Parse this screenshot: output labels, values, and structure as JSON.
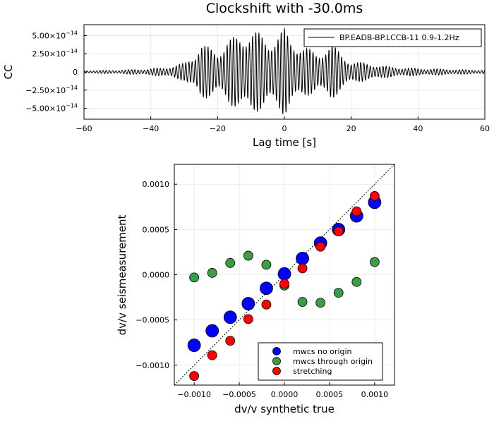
{
  "chart_data": [
    {
      "type": "line",
      "title": "Clockshift with -30.0ms",
      "xlabel": "Lag time [s]",
      "ylabel": "CC",
      "xlim": [
        -60,
        60
      ],
      "ylim": [
        -6.5e-14,
        6.5e-14
      ],
      "xticks": [
        -60,
        -40,
        -20,
        0,
        20,
        40,
        60
      ],
      "xtick_labels": [
        "−60",
        "−40",
        "−20",
        "0",
        "20",
        "40",
        "60"
      ],
      "yticks": [
        5e-14,
        2.5e-14,
        0,
        -2.5e-14,
        -5e-14
      ],
      "ytick_labels": [
        {
          "mant": "5.00×10",
          "exp": "−14"
        },
        {
          "mant": "2.50×10",
          "exp": "−14"
        },
        {
          "mant": "0",
          "exp": ""
        },
        {
          "mant": "−2.50×10",
          "exp": "−14"
        },
        {
          "mant": "−5.00×10",
          "exp": "−14"
        }
      ],
      "grid": true,
      "legend_position": "top-right",
      "series": [
        {
          "name": "BP.EADB-BP.LCCB-11 0.9-1.2Hz",
          "color": "#000000",
          "envelope": [
            [
              -60,
              2e-15
            ],
            [
              -50,
              2.5e-15
            ],
            [
              -42,
              4e-15
            ],
            [
              -36,
              6e-15
            ],
            [
              -30,
              1.2e-14
            ],
            [
              -27,
              2.5e-14
            ],
            [
              -25,
              4e-14
            ],
            [
              -23,
              3.5e-14
            ],
            [
              -20,
              3e-14
            ],
            [
              -17,
              4.5e-14
            ],
            [
              -14,
              5e-14
            ],
            [
              -12,
              5.5e-14
            ],
            [
              -10,
              6.2e-14
            ],
            [
              -8,
              5.5e-14
            ],
            [
              -5,
              4.5e-14
            ],
            [
              -2,
              5.5e-14
            ],
            [
              0,
              6e-14
            ],
            [
              2,
              4.5e-14
            ],
            [
              5,
              4e-14
            ],
            [
              8,
              3e-14
            ],
            [
              10,
              2.5e-14
            ],
            [
              12,
              3.5e-14
            ],
            [
              14,
              4e-14
            ],
            [
              17,
              2.5e-14
            ],
            [
              20,
              1.5e-14
            ],
            [
              25,
              1.2e-14
            ],
            [
              30,
              8e-15
            ],
            [
              35,
              6e-15
            ],
            [
              40,
              5e-15
            ],
            [
              48,
              4e-15
            ],
            [
              55,
              3e-15
            ],
            [
              60,
              3e-15
            ]
          ],
          "frequency_hz": 1.05
        }
      ]
    },
    {
      "type": "scatter",
      "title": "",
      "xlabel": "dv/v synthetic true",
      "ylabel": "dv/v seismeasurement",
      "xlim": [
        -0.00122,
        0.00122
      ],
      "ylim": [
        -0.00122,
        0.00122
      ],
      "xticks": [
        -0.001,
        -0.0005,
        0,
        0.0005,
        0.001
      ],
      "xtick_labels": [
        "−0.0010",
        "−0.0005",
        "0.0000",
        "0.0005",
        "0.0010"
      ],
      "yticks": [
        0.001,
        0.0005,
        0,
        -0.0005,
        -0.001
      ],
      "ytick_labels": [
        "0.0010",
        "0.0005",
        "0.0000",
        "−0.0005",
        "−0.0010"
      ],
      "grid": true,
      "legend_position": "bottom-right",
      "reference_line": {
        "style": "dotted",
        "from": [
          -0.00122,
          -0.00122
        ],
        "to": [
          0.00122,
          0.00122
        ]
      },
      "x": [
        -0.001,
        -0.0008,
        -0.0006,
        -0.0004,
        -0.0002,
        0,
        0.0002,
        0.0004,
        0.0006,
        0.0008,
        0.001
      ],
      "series": [
        {
          "name": "mwcs no origin",
          "color": "#0000ff",
          "marker_size": "large",
          "values": [
            -0.00078,
            -0.00062,
            -0.00047,
            -0.00032,
            -0.00015,
            1e-05,
            0.00018,
            0.00035,
            0.0005,
            0.00065,
            0.0008
          ]
        },
        {
          "name": "mwcs through origin",
          "color": "#3c9d47",
          "marker_size": "medium",
          "values": [
            -3e-05,
            2e-05,
            0.00013,
            0.00021,
            0.00011,
            -0.00012,
            -0.0003,
            -0.00031,
            -0.0002,
            -8e-05,
            0.00014
          ]
        },
        {
          "name": "stretching",
          "color": "#ff0000",
          "marker_size": "medium",
          "values": [
            -0.00112,
            -0.00089,
            -0.00073,
            -0.00049,
            -0.00033,
            -0.0001,
            7e-05,
            0.00031,
            0.00048,
            0.0007,
            0.00087
          ]
        }
      ]
    }
  ]
}
